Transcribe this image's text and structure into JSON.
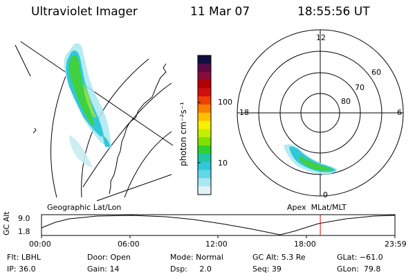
{
  "header": {
    "title": "Ultraviolet Imager",
    "date": "11 Mar 07",
    "time": "18:55:56 UT"
  },
  "colorbar": {
    "label": "photon cm⁻²s⁻¹",
    "ticks": [
      "100",
      "10"
    ],
    "colors": [
      "#101040",
      "#5a0a4a",
      "#8a0a3a",
      "#b00000",
      "#d01010",
      "#f04000",
      "#f88000",
      "#ffc000",
      "#f8f000",
      "#c0f000",
      "#80e000",
      "#30d030",
      "#20c8a0",
      "#30c8d8",
      "#60d8e8",
      "#a8e8f0",
      "#e0f4f8"
    ]
  },
  "polar": {
    "mlt_labels": {
      "top": "12",
      "left": "18",
      "right": "6",
      "bottom": "0"
    },
    "lat_labels": [
      "60",
      "70",
      "80"
    ]
  },
  "map_labels": {
    "left": "Geographic Lat/Lon",
    "right": "Apex  MLat/MLT"
  },
  "timeline": {
    "axis_label": "GC Alt",
    "y_ticks": [
      "9.0",
      "1.8"
    ],
    "x_ticks": [
      "00:00",
      "06:00",
      "12:00",
      "18:00",
      "23:59"
    ],
    "current_time_fraction": 0.7888
  },
  "info": {
    "filter": "Flt: LBHL",
    "ip": "IP: 36.0",
    "door": "Door: Open",
    "gain": "Gain: 14",
    "mode": "Mode: Normal",
    "dsp": "Dsp:     2.0",
    "gc_alt": "GC Alt: 5.3 Re",
    "seq": "Seq: 39",
    "glat": "GLat: −61.0",
    "glon": "GLon:  79.8"
  },
  "colors": {
    "aurora_green": "#40d040",
    "aurora_cyan": "#30c8d8",
    "marker_red": "#e00000"
  }
}
